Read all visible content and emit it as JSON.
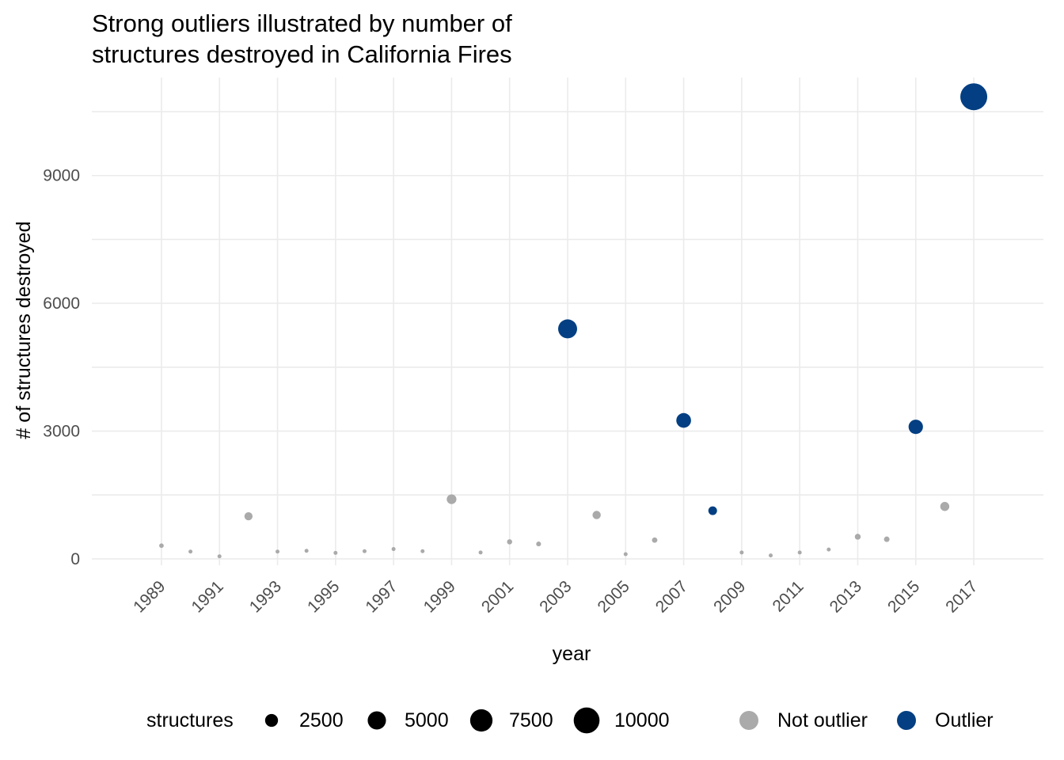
{
  "chart_data": {
    "type": "scatter",
    "title_lines": [
      "Strong outliers illustrated by number of",
      "structures destroyed in California Fires"
    ],
    "xlabel": "year",
    "ylabel": "# of structures destroyed",
    "xlim": [
      1986.6,
      2019.4
    ],
    "ylim": [
      -150,
      11300
    ],
    "x_ticks": [
      1989,
      1991,
      1993,
      1995,
      1997,
      1999,
      2001,
      2003,
      2005,
      2007,
      2009,
      2011,
      2013,
      2015,
      2017
    ],
    "x_tick_labels": [
      "1989",
      "1991",
      "1993",
      "1995",
      "1997",
      "1999",
      "2001",
      "2003",
      "2005",
      "2007",
      "2009",
      "2011",
      "2013",
      "2015",
      "2017"
    ],
    "y_ticks": [
      0,
      3000,
      6000,
      9000
    ],
    "y_tick_labels": [
      "0",
      "3000",
      "6000",
      "9000"
    ],
    "grid": true,
    "colors": {
      "Not outlier": "#aaaaaa",
      "Outlier": "#033f82"
    },
    "series": [
      {
        "name": "Not outlier",
        "x": [
          1989,
          1990,
          1991,
          1992,
          1993,
          1994,
          1995,
          1996,
          1997,
          1998,
          1999,
          2000,
          2001,
          2002,
          2004,
          2005,
          2006,
          2009,
          2010,
          2011,
          2012,
          2013,
          2014,
          2016
        ],
        "y": [
          310,
          170,
          60,
          1000,
          170,
          190,
          140,
          180,
          230,
          180,
          1400,
          150,
          400,
          350,
          1030,
          110,
          440,
          150,
          80,
          150,
          220,
          520,
          460,
          1230
        ]
      },
      {
        "name": "Outlier",
        "x": [
          2003,
          2007,
          2008,
          2015,
          2017
        ],
        "y": [
          5400,
          3250,
          1130,
          3100,
          10850
        ]
      }
    ],
    "legend": {
      "position": "bottom",
      "size_title": "structures",
      "size_entries": [
        {
          "label": "2500",
          "value": 2500
        },
        {
          "label": "5000",
          "value": 5000
        },
        {
          "label": "7500",
          "value": 7500
        },
        {
          "label": "10000",
          "value": 10000
        }
      ],
      "color_entries": [
        {
          "label": "Not outlier"
        },
        {
          "label": "Outlier"
        }
      ]
    }
  }
}
